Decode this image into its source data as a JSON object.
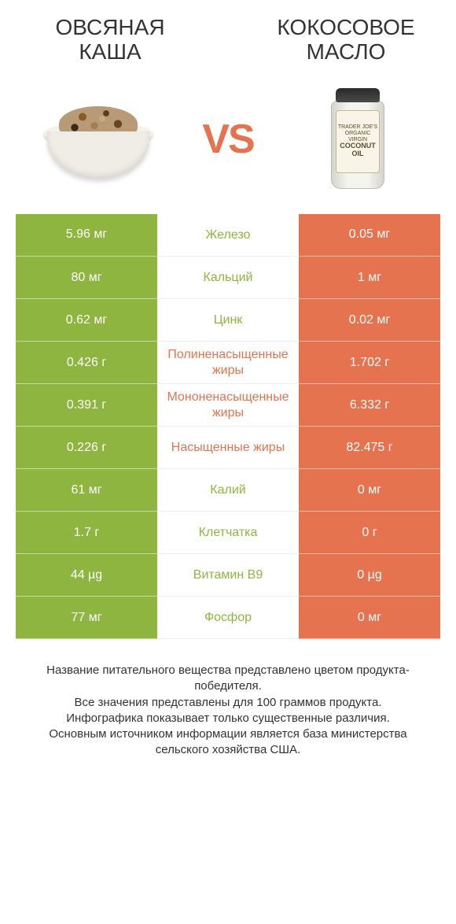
{
  "header": {
    "left_title": "Овсяная каша",
    "right_title": "Кокосовое масло"
  },
  "vs_label": "VS",
  "jar_label": {
    "line1": "TRADER JOE'S",
    "line2": "ORGANIC VIRGIN",
    "line3": "COCONUT",
    "line4": "OIL"
  },
  "colors": {
    "green": "#8eb53f",
    "orange": "#e67350",
    "background": "#ffffff",
    "text": "#333333"
  },
  "rows": [
    {
      "left": "5.96 мг",
      "name": "Железо",
      "right": "0.05 мг",
      "winner": "left"
    },
    {
      "left": "80 мг",
      "name": "Кальций",
      "right": "1 мг",
      "winner": "left"
    },
    {
      "left": "0.62 мг",
      "name": "Цинк",
      "right": "0.02 мг",
      "winner": "left"
    },
    {
      "left": "0.426 г",
      "name": "Полиненасыщенные жиры",
      "right": "1.702 г",
      "winner": "right"
    },
    {
      "left": "0.391 г",
      "name": "Мононенасыщенные жиры",
      "right": "6.332 г",
      "winner": "right"
    },
    {
      "left": "0.226 г",
      "name": "Насыщенные жиры",
      "right": "82.475 г",
      "winner": "right"
    },
    {
      "left": "61 мг",
      "name": "Калий",
      "right": "0 мг",
      "winner": "left"
    },
    {
      "left": "1.7 г",
      "name": "Клетчатка",
      "right": "0 г",
      "winner": "left"
    },
    {
      "left": "44 µg",
      "name": "Витамин B9",
      "right": "0 µg",
      "winner": "left"
    },
    {
      "left": "77 мг",
      "name": "Фосфор",
      "right": "0 мг",
      "winner": "left"
    }
  ],
  "footnote": {
    "line1": "Название питательного вещества представлено цветом продукта-победителя.",
    "line2": "Все значения представлены для 100 граммов продукта.",
    "line3": "Инфографика показывает только существенные различия.",
    "line4": "Основным источником информации является база министерства сельского хозяйства США."
  }
}
